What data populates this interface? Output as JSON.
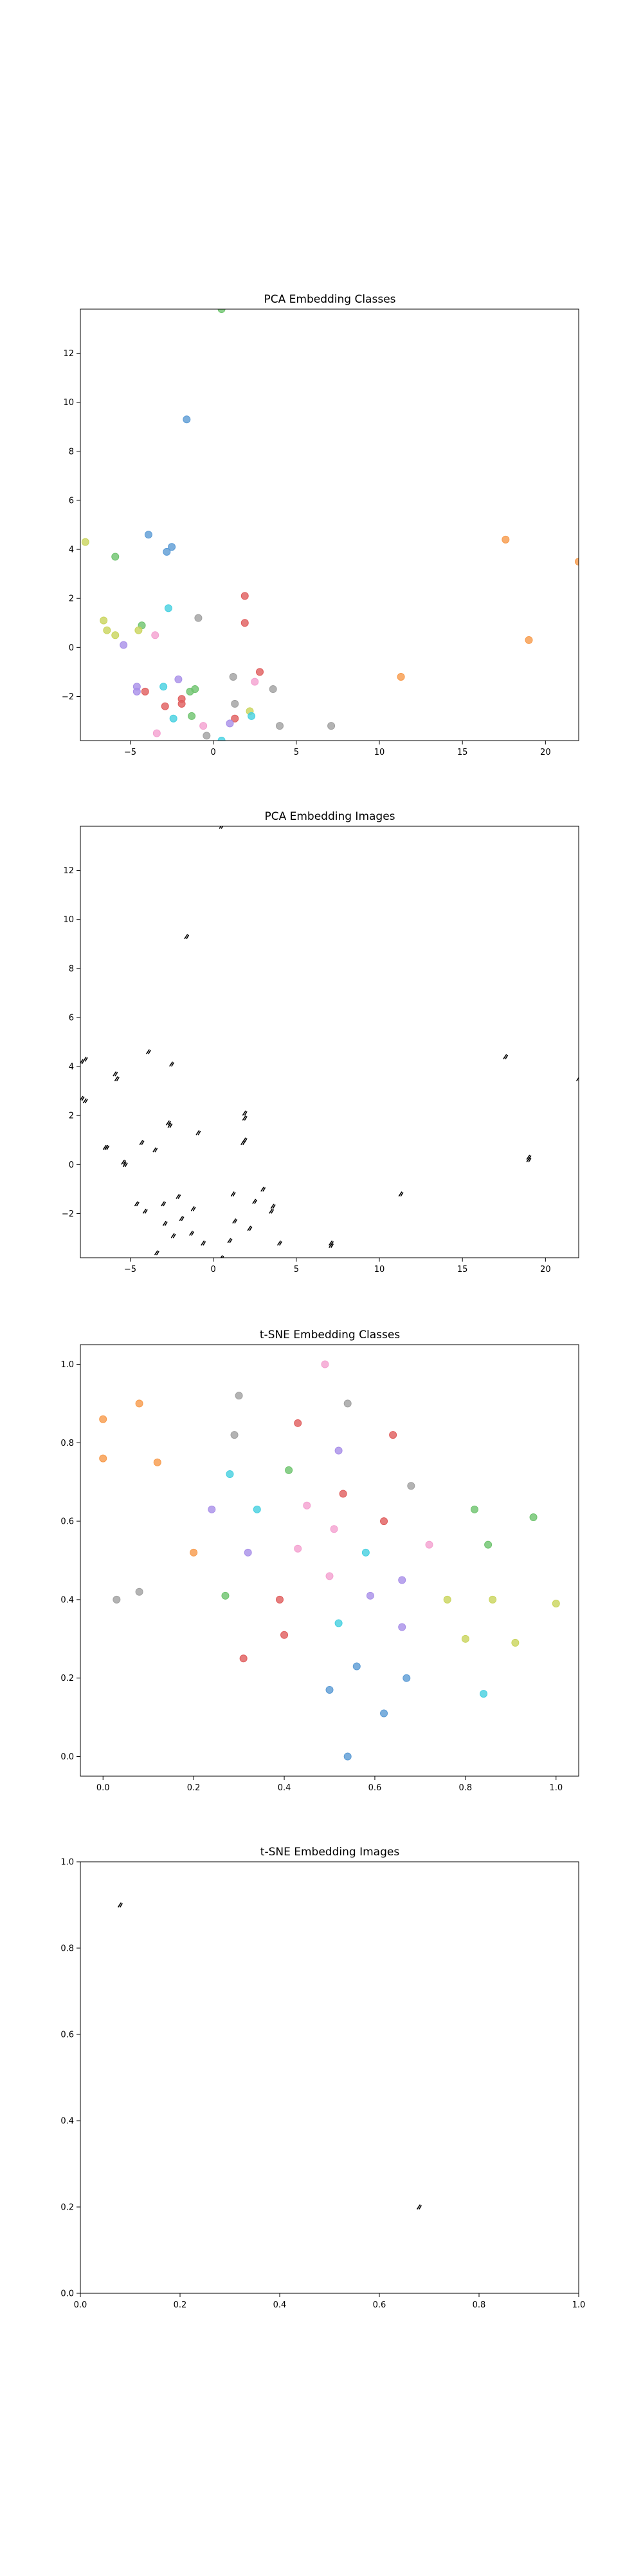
{
  "chart_data": [
    {
      "type": "scatter",
      "title": "PCA Embedding Classes",
      "xlabel": "",
      "ylabel": "",
      "xlim": [
        -8,
        22
      ],
      "ylim": [
        -3.8,
        13.8
      ],
      "xticks": [
        -5,
        0,
        5,
        10,
        15,
        20
      ],
      "xtick_labels": [
        "−5",
        "0",
        "5",
        "10",
        "15",
        "20"
      ],
      "yticks": [
        -2,
        0,
        2,
        4,
        6,
        8,
        10,
        12
      ],
      "ytick_labels": [
        "−2",
        "0",
        "2",
        "4",
        "6",
        "8",
        "10",
        "12"
      ],
      "grid": false,
      "marker": "dot",
      "points": [
        {
          "x": 0.5,
          "y": 13.8,
          "color": "#6dc36d"
        },
        {
          "x": -1.6,
          "y": 9.3,
          "color": "#5b9bd5"
        },
        {
          "x": -7.7,
          "y": 4.3,
          "color": "#c9d45b"
        },
        {
          "x": -3.9,
          "y": 4.6,
          "color": "#5b9bd5"
        },
        {
          "x": -2.5,
          "y": 4.1,
          "color": "#5b9bd5"
        },
        {
          "x": -2.8,
          "y": 3.9,
          "color": "#5b9bd5"
        },
        {
          "x": -5.9,
          "y": 3.7,
          "color": "#6dc36d"
        },
        {
          "x": 17.6,
          "y": 4.4,
          "color": "#f79a4a"
        },
        {
          "x": 22.0,
          "y": 3.5,
          "color": "#f79a4a"
        },
        {
          "x": 1.9,
          "y": 2.1,
          "color": "#e05c5c"
        },
        {
          "x": -2.7,
          "y": 1.6,
          "color": "#45d0e0"
        },
        {
          "x": -0.9,
          "y": 1.2,
          "color": "#a0a0a0"
        },
        {
          "x": 1.9,
          "y": 1.0,
          "color": "#e05c5c"
        },
        {
          "x": -6.6,
          "y": 1.1,
          "color": "#c9d45b"
        },
        {
          "x": -6.4,
          "y": 0.7,
          "color": "#c9d45b"
        },
        {
          "x": -4.3,
          "y": 0.9,
          "color": "#6dc36d"
        },
        {
          "x": -4.5,
          "y": 0.7,
          "color": "#c9d45b"
        },
        {
          "x": -5.9,
          "y": 0.5,
          "color": "#c9d45b"
        },
        {
          "x": -3.5,
          "y": 0.5,
          "color": "#f4a0d0"
        },
        {
          "x": -5.4,
          "y": 0.1,
          "color": "#a88ee8"
        },
        {
          "x": 19.0,
          "y": 0.3,
          "color": "#f79a4a"
        },
        {
          "x": 2.8,
          "y": -1.0,
          "color": "#e05c5c"
        },
        {
          "x": 1.2,
          "y": -1.2,
          "color": "#a0a0a0"
        },
        {
          "x": 11.3,
          "y": -1.2,
          "color": "#f79a4a"
        },
        {
          "x": -2.1,
          "y": -1.3,
          "color": "#a88ee8"
        },
        {
          "x": 2.5,
          "y": -1.4,
          "color": "#f4a0d0"
        },
        {
          "x": -4.6,
          "y": -1.6,
          "color": "#a88ee8"
        },
        {
          "x": -3.0,
          "y": -1.6,
          "color": "#45d0e0"
        },
        {
          "x": -4.6,
          "y": -1.8,
          "color": "#a88ee8"
        },
        {
          "x": -4.1,
          "y": -1.8,
          "color": "#e05c5c"
        },
        {
          "x": -1.1,
          "y": -1.7,
          "color": "#6dc36d"
        },
        {
          "x": -1.4,
          "y": -1.8,
          "color": "#6dc36d"
        },
        {
          "x": 3.6,
          "y": -1.7,
          "color": "#a0a0a0"
        },
        {
          "x": -1.9,
          "y": -2.1,
          "color": "#e05c5c"
        },
        {
          "x": -1.9,
          "y": -2.3,
          "color": "#e05c5c"
        },
        {
          "x": -2.9,
          "y": -2.4,
          "color": "#e05c5c"
        },
        {
          "x": 1.3,
          "y": -2.3,
          "color": "#a0a0a0"
        },
        {
          "x": 2.2,
          "y": -2.6,
          "color": "#c9d45b"
        },
        {
          "x": -1.3,
          "y": -2.8,
          "color": "#6dc36d"
        },
        {
          "x": -2.4,
          "y": -2.9,
          "color": "#45d0e0"
        },
        {
          "x": 1.3,
          "y": -2.9,
          "color": "#e05c5c"
        },
        {
          "x": 1.0,
          "y": -3.1,
          "color": "#a88ee8"
        },
        {
          "x": 2.3,
          "y": -2.8,
          "color": "#45d0e0"
        },
        {
          "x": -0.6,
          "y": -3.2,
          "color": "#f4a0d0"
        },
        {
          "x": 4.0,
          "y": -3.2,
          "color": "#a0a0a0"
        },
        {
          "x": 7.1,
          "y": -3.2,
          "color": "#a0a0a0"
        },
        {
          "x": -3.4,
          "y": -3.5,
          "color": "#f4a0d0"
        },
        {
          "x": -0.4,
          "y": -3.6,
          "color": "#a0a0a0"
        },
        {
          "x": 0.5,
          "y": -3.8,
          "color": "#45d0e0"
        }
      ]
    },
    {
      "type": "scatter",
      "title": "PCA Embedding Images",
      "xlabel": "",
      "ylabel": "",
      "xlim": [
        -8,
        22
      ],
      "ylim": [
        -3.8,
        13.8
      ],
      "xticks": [
        -5,
        0,
        5,
        10,
        15,
        20
      ],
      "xtick_labels": [
        "−5",
        "0",
        "5",
        "10",
        "15",
        "20"
      ],
      "yticks": [
        -2,
        0,
        2,
        4,
        6,
        8,
        10,
        12
      ],
      "ytick_labels": [
        "−2",
        "0",
        "2",
        "4",
        "6",
        "8",
        "10",
        "12"
      ],
      "grid": false,
      "marker": "image",
      "points": [
        {
          "x": 0.5,
          "y": 13.8
        },
        {
          "x": -1.6,
          "y": 9.3
        },
        {
          "x": -7.7,
          "y": 4.3
        },
        {
          "x": -7.9,
          "y": 4.2
        },
        {
          "x": -3.9,
          "y": 4.6
        },
        {
          "x": -2.5,
          "y": 4.1
        },
        {
          "x": -5.9,
          "y": 3.7
        },
        {
          "x": -5.8,
          "y": 3.5
        },
        {
          "x": 17.6,
          "y": 4.4
        },
        {
          "x": 22.0,
          "y": 3.5
        },
        {
          "x": -7.9,
          "y": 2.7
        },
        {
          "x": -7.7,
          "y": 2.6
        },
        {
          "x": 1.9,
          "y": 2.1
        },
        {
          "x": 1.9,
          "y": 1.9
        },
        {
          "x": -2.7,
          "y": 1.7
        },
        {
          "x": -2.6,
          "y": 1.6
        },
        {
          "x": -0.9,
          "y": 1.3
        },
        {
          "x": 1.9,
          "y": 1.0
        },
        {
          "x": 1.8,
          "y": 0.9
        },
        {
          "x": -4.3,
          "y": 0.9
        },
        {
          "x": -6.4,
          "y": 0.7
        },
        {
          "x": -6.5,
          "y": 0.7
        },
        {
          "x": -3.5,
          "y": 0.6
        },
        {
          "x": -5.4,
          "y": 0.1
        },
        {
          "x": -5.3,
          "y": 0.0
        },
        {
          "x": 19.0,
          "y": 0.3
        },
        {
          "x": 19.0,
          "y": 0.2
        },
        {
          "x": 3.0,
          "y": -1.0
        },
        {
          "x": 1.2,
          "y": -1.2
        },
        {
          "x": 11.3,
          "y": -1.2
        },
        {
          "x": -2.1,
          "y": -1.3
        },
        {
          "x": 2.5,
          "y": -1.5
        },
        {
          "x": -4.6,
          "y": -1.6
        },
        {
          "x": -3.0,
          "y": -1.6
        },
        {
          "x": -4.1,
          "y": -1.9
        },
        {
          "x": -1.2,
          "y": -1.8
        },
        {
          "x": 3.6,
          "y": -1.7
        },
        {
          "x": 3.5,
          "y": -1.9
        },
        {
          "x": -1.9,
          "y": -2.2
        },
        {
          "x": -2.9,
          "y": -2.4
        },
        {
          "x": 1.3,
          "y": -2.3
        },
        {
          "x": 2.2,
          "y": -2.6
        },
        {
          "x": -1.3,
          "y": -2.8
        },
        {
          "x": -2.4,
          "y": -2.9
        },
        {
          "x": 1.0,
          "y": -3.1
        },
        {
          "x": -0.6,
          "y": -3.2
        },
        {
          "x": 4.0,
          "y": -3.2
        },
        {
          "x": 7.1,
          "y": -3.2
        },
        {
          "x": 7.1,
          "y": -3.3
        },
        {
          "x": -3.4,
          "y": -3.6
        },
        {
          "x": 0.5,
          "y": -3.8
        }
      ]
    },
    {
      "type": "scatter",
      "title": "t-SNE Embedding Classes",
      "xlabel": "",
      "ylabel": "",
      "xlim": [
        -0.05,
        1.05
      ],
      "ylim": [
        -0.05,
        1.05
      ],
      "xticks": [
        0.0,
        0.2,
        0.4,
        0.6,
        0.8,
        1.0
      ],
      "xtick_labels": [
        "0.0",
        "0.2",
        "0.4",
        "0.6",
        "0.8",
        "1.0"
      ],
      "yticks": [
        0.0,
        0.2,
        0.4,
        0.6,
        0.8,
        1.0
      ],
      "ytick_labels": [
        "0.0",
        "0.2",
        "0.4",
        "0.6",
        "0.8",
        "1.0"
      ],
      "grid": false,
      "marker": "dot",
      "points": [
        {
          "x": 0.49,
          "y": 1.0,
          "color": "#f4a0d0"
        },
        {
          "x": 0.3,
          "y": 0.92,
          "color": "#a0a0a0"
        },
        {
          "x": 0.54,
          "y": 0.9,
          "color": "#a0a0a0"
        },
        {
          "x": 0.08,
          "y": 0.9,
          "color": "#f79a4a"
        },
        {
          "x": 0.0,
          "y": 0.86,
          "color": "#f79a4a"
        },
        {
          "x": 0.43,
          "y": 0.85,
          "color": "#e05c5c"
        },
        {
          "x": 0.64,
          "y": 0.82,
          "color": "#e05c5c"
        },
        {
          "x": 0.29,
          "y": 0.82,
          "color": "#a0a0a0"
        },
        {
          "x": 0.52,
          "y": 0.78,
          "color": "#a88ee8"
        },
        {
          "x": 0.0,
          "y": 0.76,
          "color": "#f79a4a"
        },
        {
          "x": 0.12,
          "y": 0.75,
          "color": "#f79a4a"
        },
        {
          "x": 0.41,
          "y": 0.73,
          "color": "#6dc36d"
        },
        {
          "x": 0.28,
          "y": 0.72,
          "color": "#45d0e0"
        },
        {
          "x": 0.68,
          "y": 0.69,
          "color": "#a0a0a0"
        },
        {
          "x": 0.53,
          "y": 0.67,
          "color": "#e05c5c"
        },
        {
          "x": 0.45,
          "y": 0.64,
          "color": "#f4a0d0"
        },
        {
          "x": 0.82,
          "y": 0.63,
          "color": "#6dc36d"
        },
        {
          "x": 0.24,
          "y": 0.63,
          "color": "#a88ee8"
        },
        {
          "x": 0.34,
          "y": 0.63,
          "color": "#45d0e0"
        },
        {
          "x": 0.95,
          "y": 0.61,
          "color": "#6dc36d"
        },
        {
          "x": 0.62,
          "y": 0.6,
          "color": "#e05c5c"
        },
        {
          "x": 0.51,
          "y": 0.58,
          "color": "#f4a0d0"
        },
        {
          "x": 0.72,
          "y": 0.54,
          "color": "#f4a0d0"
        },
        {
          "x": 0.85,
          "y": 0.54,
          "color": "#6dc36d"
        },
        {
          "x": 0.43,
          "y": 0.53,
          "color": "#f4a0d0"
        },
        {
          "x": 0.2,
          "y": 0.52,
          "color": "#f79a4a"
        },
        {
          "x": 0.32,
          "y": 0.52,
          "color": "#a88ee8"
        },
        {
          "x": 0.58,
          "y": 0.52,
          "color": "#45d0e0"
        },
        {
          "x": 0.5,
          "y": 0.46,
          "color": "#f4a0d0"
        },
        {
          "x": 0.66,
          "y": 0.45,
          "color": "#a88ee8"
        },
        {
          "x": 0.08,
          "y": 0.42,
          "color": "#a0a0a0"
        },
        {
          "x": 0.59,
          "y": 0.41,
          "color": "#a88ee8"
        },
        {
          "x": 0.27,
          "y": 0.41,
          "color": "#6dc36d"
        },
        {
          "x": 0.39,
          "y": 0.4,
          "color": "#e05c5c"
        },
        {
          "x": 0.03,
          "y": 0.4,
          "color": "#a0a0a0"
        },
        {
          "x": 0.76,
          "y": 0.4,
          "color": "#c9d45b"
        },
        {
          "x": 0.86,
          "y": 0.4,
          "color": "#c9d45b"
        },
        {
          "x": 1.0,
          "y": 0.39,
          "color": "#c9d45b"
        },
        {
          "x": 0.52,
          "y": 0.34,
          "color": "#45d0e0"
        },
        {
          "x": 0.66,
          "y": 0.33,
          "color": "#a88ee8"
        },
        {
          "x": 0.4,
          "y": 0.31,
          "color": "#e05c5c"
        },
        {
          "x": 0.8,
          "y": 0.3,
          "color": "#c9d45b"
        },
        {
          "x": 0.91,
          "y": 0.29,
          "color": "#c9d45b"
        },
        {
          "x": 0.31,
          "y": 0.25,
          "color": "#e05c5c"
        },
        {
          "x": 0.56,
          "y": 0.23,
          "color": "#5b9bd5"
        },
        {
          "x": 0.67,
          "y": 0.2,
          "color": "#5b9bd5"
        },
        {
          "x": 0.5,
          "y": 0.17,
          "color": "#5b9bd5"
        },
        {
          "x": 0.84,
          "y": 0.16,
          "color": "#45d0e0"
        },
        {
          "x": 0.62,
          "y": 0.11,
          "color": "#5b9bd5"
        },
        {
          "x": 0.54,
          "y": 0.0,
          "color": "#5b9bd5"
        }
      ]
    },
    {
      "type": "scatter",
      "title": "t-SNE Embedding Images",
      "xlabel": "",
      "ylabel": "",
      "xlim": [
        0.0,
        1.0
      ],
      "ylim": [
        0.0,
        1.0
      ],
      "xticks": [
        0.0,
        0.2,
        0.4,
        0.6,
        0.8,
        1.0
      ],
      "xtick_labels": [
        "0.0",
        "0.2",
        "0.4",
        "0.6",
        "0.8",
        "1.0"
      ],
      "yticks": [
        0.0,
        0.2,
        0.4,
        0.6,
        0.8,
        1.0
      ],
      "ytick_labels": [
        "0.0",
        "0.2",
        "0.4",
        "0.6",
        "0.8",
        "1.0"
      ],
      "grid": false,
      "marker": "image",
      "points": [
        {
          "x": 0.08,
          "y": 0.9
        },
        {
          "x": 0.68,
          "y": 0.2
        }
      ]
    }
  ]
}
